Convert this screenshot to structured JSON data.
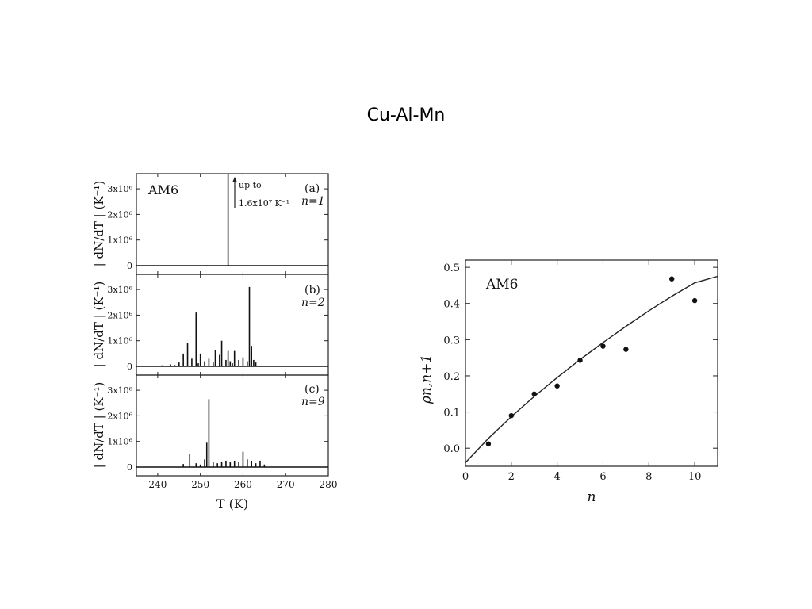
{
  "slide": {
    "title": "Cu-Al-Mn"
  },
  "chart_data": [
    {
      "type": "line",
      "panels": [
        {
          "label": "(a)",
          "n_label": "n=1",
          "sample": "AM6",
          "annotation": [
            "up to",
            "1.6x10⁷ K⁻¹"
          ],
          "ylabel": "| dN/dT | (K⁻¹)",
          "yticks": [
            "3x10⁶",
            "2x10⁶",
            "1x10⁶",
            "0"
          ],
          "ylim": [
            0,
            3500000
          ],
          "spikes": [
            [
              256.5,
              3600000
            ]
          ]
        },
        {
          "label": "(b)",
          "n_label": "n=2",
          "ylabel": "| dN/dT | (K⁻¹)",
          "yticks": [
            "3x10⁶",
            "2x10⁶",
            "1x10⁶",
            "0"
          ],
          "ylim": [
            0,
            3500000
          ],
          "spikes": [
            [
              241,
              40000
            ],
            [
              243,
              80000
            ],
            [
              244,
              50000
            ],
            [
              245,
              150000
            ],
            [
              246,
              500000
            ],
            [
              247,
              900000
            ],
            [
              248,
              300000
            ],
            [
              249,
              2100000
            ],
            [
              249.5,
              120000
            ],
            [
              250,
              500000
            ],
            [
              251,
              200000
            ],
            [
              252,
              300000
            ],
            [
              253,
              150000
            ],
            [
              253.5,
              650000
            ],
            [
              254.5,
              450000
            ],
            [
              255,
              1000000
            ],
            [
              256,
              250000
            ],
            [
              256.5,
              600000
            ],
            [
              257,
              200000
            ],
            [
              257.5,
              120000
            ],
            [
              258,
              600000
            ],
            [
              259,
              250000
            ],
            [
              260,
              350000
            ],
            [
              261,
              200000
            ],
            [
              261.5,
              3100000
            ],
            [
              262,
              800000
            ],
            [
              262.5,
              250000
            ],
            [
              263,
              150000
            ]
          ]
        },
        {
          "label": "(c)",
          "n_label": "n=9",
          "ylabel": "| dN/dT | (K⁻¹)",
          "yticks": [
            "3x10⁶",
            "2x10⁶",
            "1x10⁶",
            "0"
          ],
          "ylim": [
            0,
            3500000
          ],
          "spikes": [
            [
              246,
              120000
            ],
            [
              247.5,
              500000
            ],
            [
              249,
              150000
            ],
            [
              250,
              100000
            ],
            [
              251,
              300000
            ],
            [
              251.5,
              950000
            ],
            [
              252,
              2650000
            ],
            [
              253,
              200000
            ],
            [
              254,
              150000
            ],
            [
              255,
              200000
            ],
            [
              256,
              250000
            ],
            [
              257,
              200000
            ],
            [
              258,
              250000
            ],
            [
              259,
              200000
            ],
            [
              260,
              600000
            ],
            [
              261,
              300000
            ],
            [
              262,
              250000
            ],
            [
              263,
              150000
            ],
            [
              264,
              250000
            ],
            [
              265,
              100000
            ]
          ]
        }
      ],
      "xlabel": "T (K)",
      "xlim": [
        235,
        280
      ],
      "xticks": [
        240,
        250,
        260,
        270,
        280
      ]
    },
    {
      "type": "scatter",
      "sample": "AM6",
      "xlabel": "n",
      "ylabel": "ρn,n+1",
      "xlim": [
        0,
        11
      ],
      "ylim": [
        -0.05,
        0.52
      ],
      "xticks": [
        0,
        2,
        4,
        6,
        8,
        10
      ],
      "yticks": [
        0.0,
        0.1,
        0.2,
        0.3,
        0.4,
        0.5
      ],
      "ytick_labels": [
        "0.0",
        "0.1",
        "0.2",
        "0.3",
        "0.4",
        "0.5"
      ],
      "points": [
        [
          1,
          0.012
        ],
        [
          2,
          0.09
        ],
        [
          3,
          0.15
        ],
        [
          4,
          0.172
        ],
        [
          5,
          0.243
        ],
        [
          6,
          0.282
        ],
        [
          7,
          0.273
        ],
        [
          9,
          0.468
        ],
        [
          10,
          0.408
        ]
      ],
      "fit_curve": [
        [
          0,
          -0.04
        ],
        [
          1,
          0.027
        ],
        [
          2,
          0.087
        ],
        [
          3,
          0.143
        ],
        [
          4,
          0.195
        ],
        [
          5,
          0.245
        ],
        [
          6,
          0.292
        ],
        [
          7,
          0.337
        ],
        [
          8,
          0.38
        ],
        [
          9,
          0.42
        ],
        [
          10,
          0.457
        ],
        [
          11,
          0.475
        ]
      ]
    }
  ]
}
